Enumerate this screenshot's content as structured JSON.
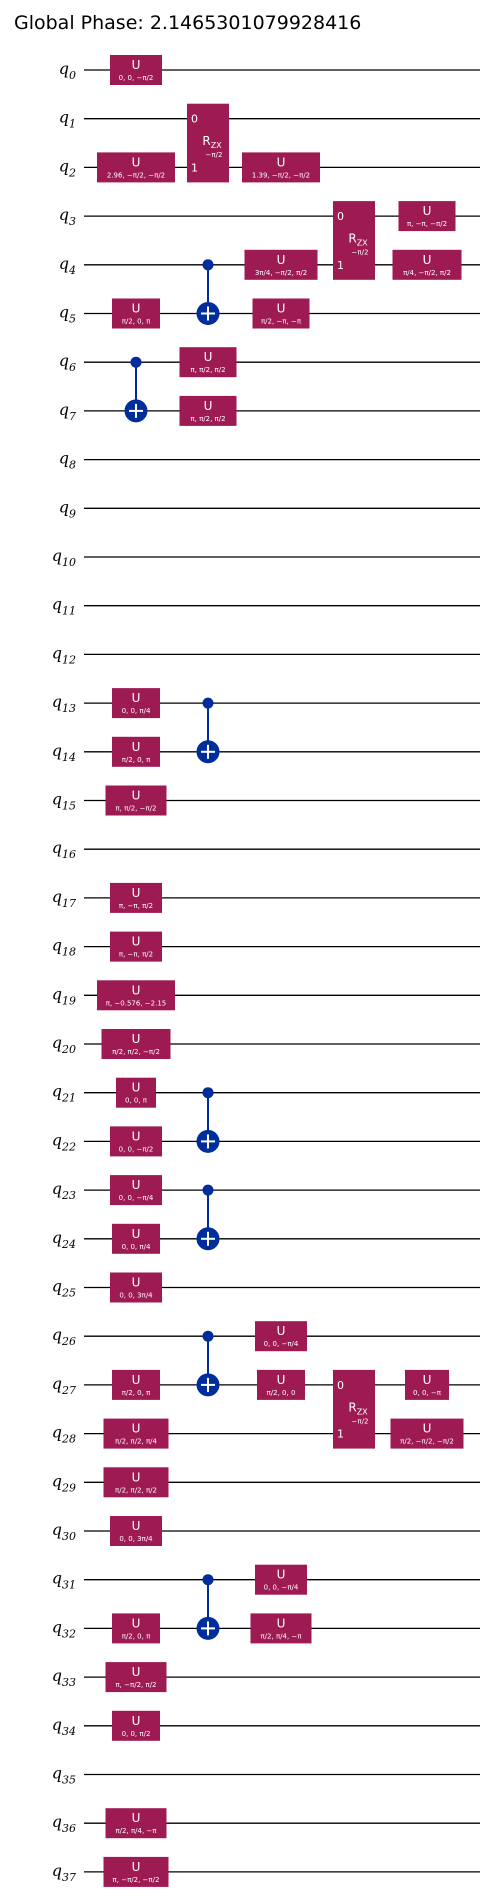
{
  "title": "Global Phase: 2.1465301079928416",
  "wire_symbol": "q",
  "qubits": [
    "0",
    "1",
    "2",
    "3",
    "4",
    "5",
    "6",
    "7",
    "8",
    "9",
    "10",
    "11",
    "12",
    "13",
    "14",
    "15",
    "16",
    "17",
    "18",
    "19",
    "20",
    "21",
    "22",
    "23",
    "24",
    "25",
    "26",
    "27",
    "28",
    "29",
    "30",
    "31",
    "32",
    "33",
    "34",
    "35",
    "36",
    "37"
  ],
  "colors": {
    "gate": "#9e1a53",
    "control": "#002d9c",
    "wire": "#000000"
  },
  "gates": [
    {
      "type": "U",
      "qubit": 0,
      "col": 0,
      "params": "0, 0, −π/2"
    },
    {
      "type": "U",
      "qubit": 2,
      "col": 0,
      "params": "2.96, −π/2, −π/2"
    },
    {
      "type": "U",
      "qubit": 5,
      "col": 0,
      "params": "π/2, 0, π"
    },
    {
      "type": "U",
      "qubit": 13,
      "col": 0,
      "params": "0, 0, π/4"
    },
    {
      "type": "U",
      "qubit": 14,
      "col": 0,
      "params": "π/2, 0, π"
    },
    {
      "type": "U",
      "qubit": 15,
      "col": 0,
      "params": "π, π/2, −π/2"
    },
    {
      "type": "U",
      "qubit": 17,
      "col": 0,
      "params": "π, −π, π/2"
    },
    {
      "type": "U",
      "qubit": 18,
      "col": 0,
      "params": "π, −π, π/2"
    },
    {
      "type": "U",
      "qubit": 19,
      "col": 0,
      "params": "π, −0.576, −2.15"
    },
    {
      "type": "U",
      "qubit": 20,
      "col": 0,
      "params": "π/2, π/2, −π/2"
    },
    {
      "type": "U",
      "qubit": 21,
      "col": 0,
      "params": "0, 0, π"
    },
    {
      "type": "U",
      "qubit": 22,
      "col": 0,
      "params": "0, 0, −π/2"
    },
    {
      "type": "U",
      "qubit": 23,
      "col": 0,
      "params": "0, 0, −π/4"
    },
    {
      "type": "U",
      "qubit": 24,
      "col": 0,
      "params": "0, 0, π/4"
    },
    {
      "type": "U",
      "qubit": 25,
      "col": 0,
      "params": "0, 0, 3π/4"
    },
    {
      "type": "U",
      "qubit": 27,
      "col": 0,
      "params": "π/2, 0, π"
    },
    {
      "type": "U",
      "qubit": 28,
      "col": 0,
      "params": "π/2, π/2, π/4"
    },
    {
      "type": "U",
      "qubit": 29,
      "col": 0,
      "params": "π/2, π/2, π/2"
    },
    {
      "type": "U",
      "qubit": 30,
      "col": 0,
      "params": "0, 0, 3π/4"
    },
    {
      "type": "U",
      "qubit": 32,
      "col": 0,
      "params": "π/2, 0, π"
    },
    {
      "type": "U",
      "qubit": 33,
      "col": 0,
      "params": "π, −π/2, π/2"
    },
    {
      "type": "U",
      "qubit": 34,
      "col": 0,
      "params": "0, 0, π/2"
    },
    {
      "type": "U",
      "qubit": 36,
      "col": 0,
      "params": "π/2, π/4, −π"
    },
    {
      "type": "U",
      "qubit": 37,
      "col": 0,
      "params": "π, −π/2, −π/2"
    },
    {
      "type": "U",
      "qubit": 6,
      "col": 1,
      "params": "π, π/2, π/2"
    },
    {
      "type": "U",
      "qubit": 7,
      "col": 1,
      "params": "π, π/2, π/2"
    },
    {
      "type": "U",
      "qubit": 2,
      "col": 2,
      "params": "1.39, −π/2, −π/2"
    },
    {
      "type": "U",
      "qubit": 4,
      "col": 2,
      "params": "3π/4, −π/2, π/2"
    },
    {
      "type": "U",
      "qubit": 5,
      "col": 2,
      "params": "π/2, −π, −π"
    },
    {
      "type": "U",
      "qubit": 26,
      "col": 2,
      "params": "0, 0, −π/4"
    },
    {
      "type": "U",
      "qubit": 27,
      "col": 2,
      "params": "π/2, 0, 0"
    },
    {
      "type": "U",
      "qubit": 31,
      "col": 2,
      "params": "0, 0, −π/4"
    },
    {
      "type": "U",
      "qubit": 32,
      "col": 2,
      "params": "π/2, π/4, −π"
    },
    {
      "type": "U",
      "qubit": 3,
      "col": 4,
      "params": "π, −π, −π/2"
    },
    {
      "type": "U",
      "qubit": 4,
      "col": 4,
      "params": "π/4, −π/2, π/2"
    },
    {
      "type": "U",
      "qubit": 27,
      "col": 4,
      "params": "0, 0, −π"
    },
    {
      "type": "U",
      "qubit": 28,
      "col": 4,
      "params": "π/2, −π/2, −π/2"
    }
  ],
  "rzx_gates": [
    {
      "name": "R",
      "sub": "ZX",
      "param": "−π/2",
      "q0": 1,
      "q1": 2,
      "col": 1,
      "idx0": "0",
      "idx1": "1"
    },
    {
      "name": "R",
      "sub": "ZX",
      "param": "−π/2",
      "q0": 3,
      "q1": 4,
      "col": 3,
      "idx0": "0",
      "idx1": "1"
    },
    {
      "name": "R",
      "sub": "ZX",
      "param": "−π/2",
      "q0": 27,
      "q1": 28,
      "col": 3,
      "idx0": "0",
      "idx1": "1"
    }
  ],
  "cx_gates": [
    {
      "control": 6,
      "target": 7,
      "col": 0
    },
    {
      "control": 4,
      "target": 5,
      "col": 1
    },
    {
      "control": 13,
      "target": 14,
      "col": 1
    },
    {
      "control": 21,
      "target": 22,
      "col": 1
    },
    {
      "control": 23,
      "target": 24,
      "col": 1
    },
    {
      "control": 26,
      "target": 27,
      "col": 1
    },
    {
      "control": 31,
      "target": 32,
      "col": 1
    }
  ]
}
